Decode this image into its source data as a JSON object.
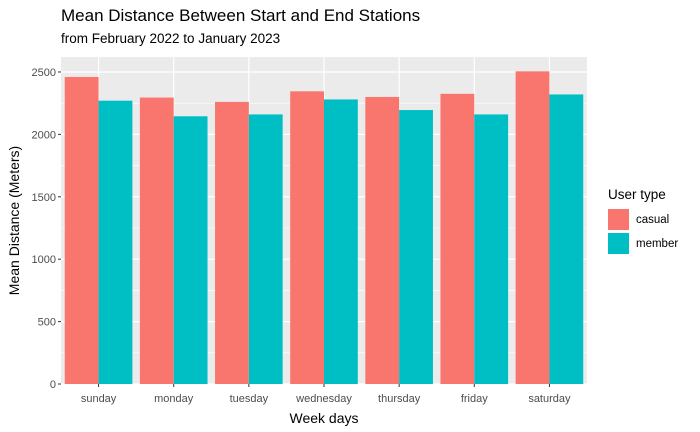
{
  "chart_data": {
    "type": "bar",
    "title": "Mean Distance Between Start and End Stations",
    "subtitle": "from February 2022 to January 2023",
    "xlabel": "Week days",
    "ylabel": "Mean Distance (Meters)",
    "categories": [
      "sunday",
      "monday",
      "tuesday",
      "wednesday",
      "thursday",
      "friday",
      "saturday"
    ],
    "series": [
      {
        "name": "casual",
        "color": "#F8766D",
        "values": [
          2460,
          2295,
          2260,
          2345,
          2300,
          2325,
          2505
        ]
      },
      {
        "name": "member",
        "color": "#00BFC4",
        "values": [
          2270,
          2145,
          2160,
          2280,
          2195,
          2160,
          2320
        ]
      }
    ],
    "ylim": [
      0,
      2620
    ],
    "yticks": [
      0,
      500,
      1000,
      1500,
      2000,
      2500
    ],
    "legend": {
      "title": "User type",
      "position": "right"
    },
    "grid": true,
    "panel_background": "#EBEBEB"
  }
}
